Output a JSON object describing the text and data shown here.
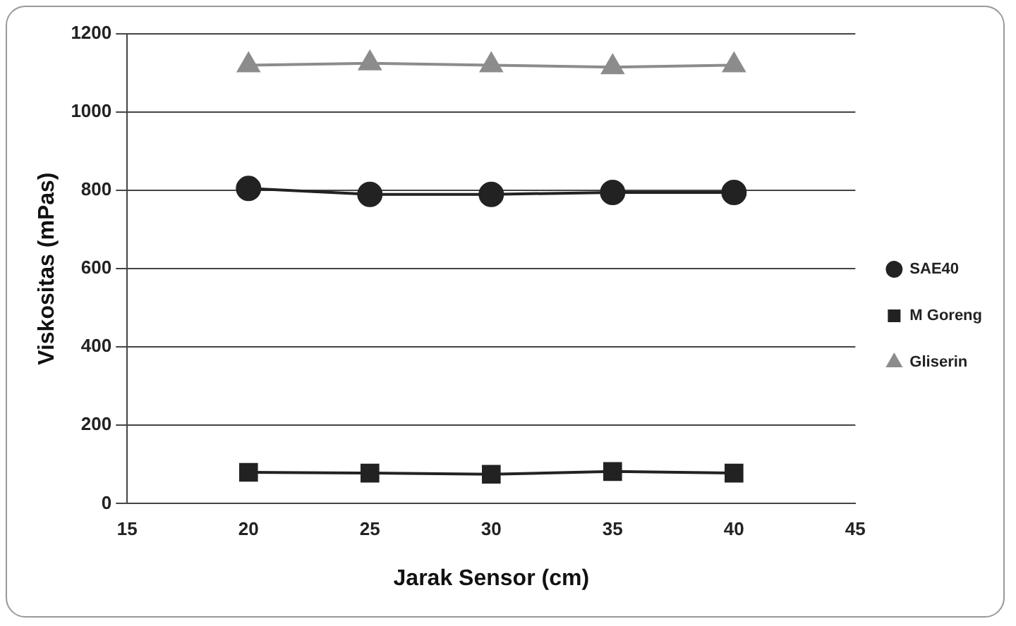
{
  "chart_data": {
    "type": "line",
    "xlabel": "Jarak Sensor (cm)",
    "ylabel": "Viskositas (mPas)",
    "x": [
      20,
      25,
      30,
      35,
      40
    ],
    "series": [
      {
        "name": "SAE40",
        "color": "#222222",
        "marker": "circle",
        "values": [
          805,
          790,
          790,
          795,
          795
        ]
      },
      {
        "name": "M Goreng",
        "color": "#222222",
        "marker": "square",
        "values": [
          80,
          78,
          75,
          82,
          78
        ]
      },
      {
        "name": "Gliserin",
        "color": "#8c8c8c",
        "marker": "triangle",
        "values": [
          1120,
          1125,
          1120,
          1115,
          1120
        ]
      }
    ],
    "xlim": [
      15,
      45
    ],
    "xticks": [
      15,
      20,
      25,
      30,
      35,
      40,
      45
    ],
    "ylim": [
      0,
      1200
    ],
    "yticks": [
      0,
      200,
      400,
      600,
      800,
      1000,
      1200
    ],
    "grid": "y",
    "legend": "right"
  }
}
